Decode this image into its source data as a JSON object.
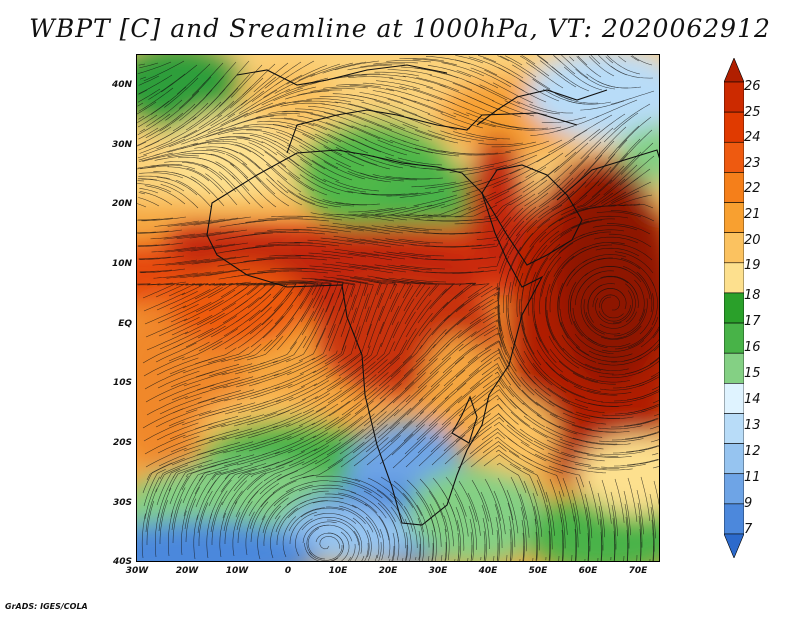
{
  "title": "WBPT [C] and Sreamline at 1000hPa, VT: 2020062912",
  "footer": "GrADS: IGES/COLA",
  "map": {
    "lat_labels": [
      "40N",
      "30N",
      "20N",
      "10N",
      "EQ",
      "10S",
      "20S",
      "30S",
      "40S"
    ],
    "lon_labels": [
      "30W",
      "20W",
      "10W",
      "0",
      "10E",
      "20E",
      "30E",
      "40E",
      "50E",
      "60E",
      "70E"
    ]
  },
  "colorbar": {
    "labels": [
      "26",
      "25",
      "24",
      "23",
      "22",
      "21",
      "20",
      "19",
      "18",
      "17",
      "16",
      "15",
      "14",
      "13",
      "12",
      "11",
      "9",
      "7"
    ],
    "colors": [
      "#b01f00",
      "#cc2a00",
      "#e03a00",
      "#ee5a10",
      "#f57f1a",
      "#f8a030",
      "#fbc260",
      "#fde08e",
      "#2aa02a",
      "#48b348",
      "#84d084",
      "#dff3ff",
      "#b8dcf8",
      "#96c4f0",
      "#6ea4e6",
      "#4c88dc",
      "#2c6acc"
    ]
  }
}
